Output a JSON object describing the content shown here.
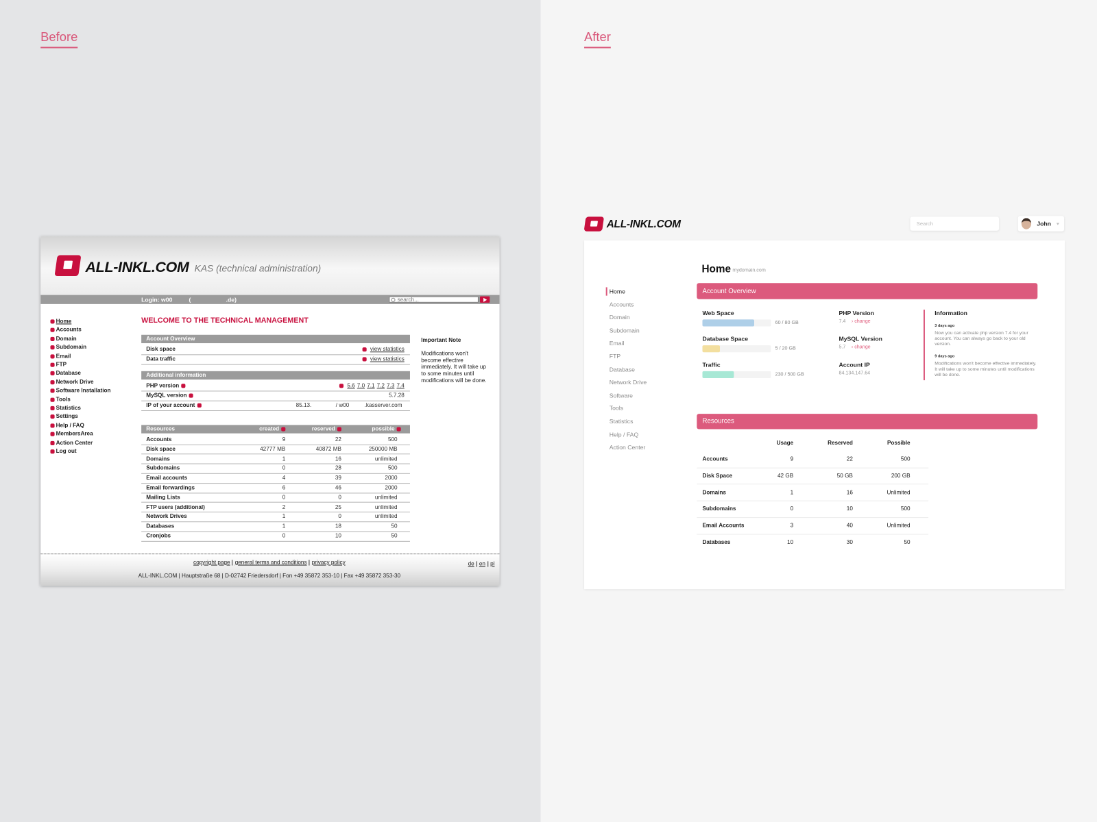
{
  "before": {
    "label": "Before",
    "logo": "ALL-INKL.COM",
    "subtitle": "KAS (technical administration)",
    "login": {
      "user": "Login: w00",
      "paren": "(",
      "domain": ".de)"
    },
    "search": "search...",
    "nav": [
      "Home",
      "Accounts",
      "Domain",
      "Subdomain",
      "Email",
      "FTP",
      "Database",
      "Network Drive",
      "Software Installation",
      "Tools",
      "Statistics",
      "Settings",
      "Help / FAQ",
      "MembersArea",
      "Action Center",
      "Log out"
    ],
    "heading": "WELCOME TO THE TECHNICAL MANAGEMENT",
    "account_overview": {
      "title": "Account Overview",
      "rows": [
        {
          "label": "Disk space",
          "link": "view statistics"
        },
        {
          "label": "Data traffic",
          "link": "view statistics"
        }
      ]
    },
    "additional": {
      "title": "Additional information",
      "php": {
        "label": "PHP version",
        "versions": [
          "5.6",
          "7.0",
          "7.1",
          "7.2",
          "7.3",
          "7.4"
        ]
      },
      "mysql": {
        "label": "MySQL version",
        "value": "5.7.28"
      },
      "ip": {
        "label": "IP of your account",
        "parts": [
          "85.13.",
          "/ w00",
          ".kasserver.com"
        ]
      }
    },
    "resources": {
      "header": [
        "Resources",
        "created",
        "reserved",
        "possible"
      ],
      "rows": [
        [
          "Accounts",
          "9",
          "22",
          "500"
        ],
        [
          "Disk space",
          "42777 MB",
          "40872 MB",
          "250000 MB"
        ],
        [
          "Domains",
          "1",
          "16",
          "unlimited"
        ],
        [
          "Subdomains",
          "0",
          "28",
          "500"
        ],
        [
          "Email accounts",
          "4",
          "39",
          "2000"
        ],
        [
          "Email forwardings",
          "6",
          "46",
          "2000"
        ],
        [
          "Mailing Lists",
          "0",
          "0",
          "unlimited"
        ],
        [
          "FTP users (additional)",
          "2",
          "25",
          "unlimited"
        ],
        [
          "Network Drives",
          "1",
          "0",
          "unlimited"
        ],
        [
          "Databases",
          "1",
          "18",
          "50"
        ],
        [
          "Cronjobs",
          "0",
          "10",
          "50"
        ]
      ]
    },
    "note": {
      "title": "Important Note",
      "text": "Modifications won't become effective immediately. It will take up to some minutes until modifications will be done."
    },
    "footer": {
      "links": [
        "copyright page",
        "general terms and conditions",
        "privacy policy"
      ],
      "languages": [
        "de",
        "en",
        "pl"
      ],
      "address": "ALL-INKL.COM | Hauptstraße 68 | D-02742 Friedersdorf | Fon +49 35872 353-10 | Fax +49 35872 353-30"
    }
  },
  "after": {
    "label": "After",
    "logo": "ALL-INKL.COM",
    "search": "Search",
    "user": "John",
    "nav": [
      "Home",
      "Accounts",
      "Domain",
      "Subdomain",
      "Email",
      "FTP",
      "Database",
      "Network Drive",
      "Software",
      "Tools",
      "Statistics",
      "Help / FAQ",
      "Action Center"
    ],
    "title": "Home",
    "domain": "mydomain.com",
    "account_overview": "Account Overview",
    "meters": [
      {
        "label": "Web Space",
        "value": 60,
        "max": 80,
        "text": "60 / 80 GB",
        "color": "#aecfe8"
      },
      {
        "label": "Database Space",
        "value": 5,
        "max": 20,
        "text": "5 / 20 GB",
        "color": "#f3df9f"
      },
      {
        "label": "Traffic",
        "value": 230,
        "max": 500,
        "text": "230 / 500 GB",
        "color": "#a7e8d5"
      }
    ],
    "stats": [
      {
        "label": "PHP Version",
        "value": "7.4",
        "action": "› change"
      },
      {
        "label": "MySQL Version",
        "value": "5.7",
        "action": "› change"
      },
      {
        "label": "Account IP",
        "value": "84.134.147.64"
      }
    ],
    "information": {
      "title": "Information",
      "items": [
        {
          "time": "3 days ago",
          "text": "Now you can activate php version 7.4 for your account. You can always go back to your old version."
        },
        {
          "time": "9 days ago",
          "text": "Modifications won't become effective immediately. It will take up to some minutes until modifications will be done."
        }
      ]
    },
    "resources": {
      "title": "Resources",
      "header": [
        "Usage",
        "Reserved",
        "Possible"
      ],
      "rows": [
        [
          "Accounts",
          "9",
          "22",
          "500"
        ],
        [
          "Disk Space",
          "42 GB",
          "50 GB",
          "200 GB"
        ],
        [
          "Domains",
          "1",
          "16",
          "Unlimited"
        ],
        [
          "Subdomains",
          "0",
          "10",
          "500"
        ],
        [
          "Email Accounts",
          "3",
          "40",
          "Unlimited"
        ],
        [
          "Databases",
          "10",
          "30",
          "50"
        ]
      ]
    }
  }
}
